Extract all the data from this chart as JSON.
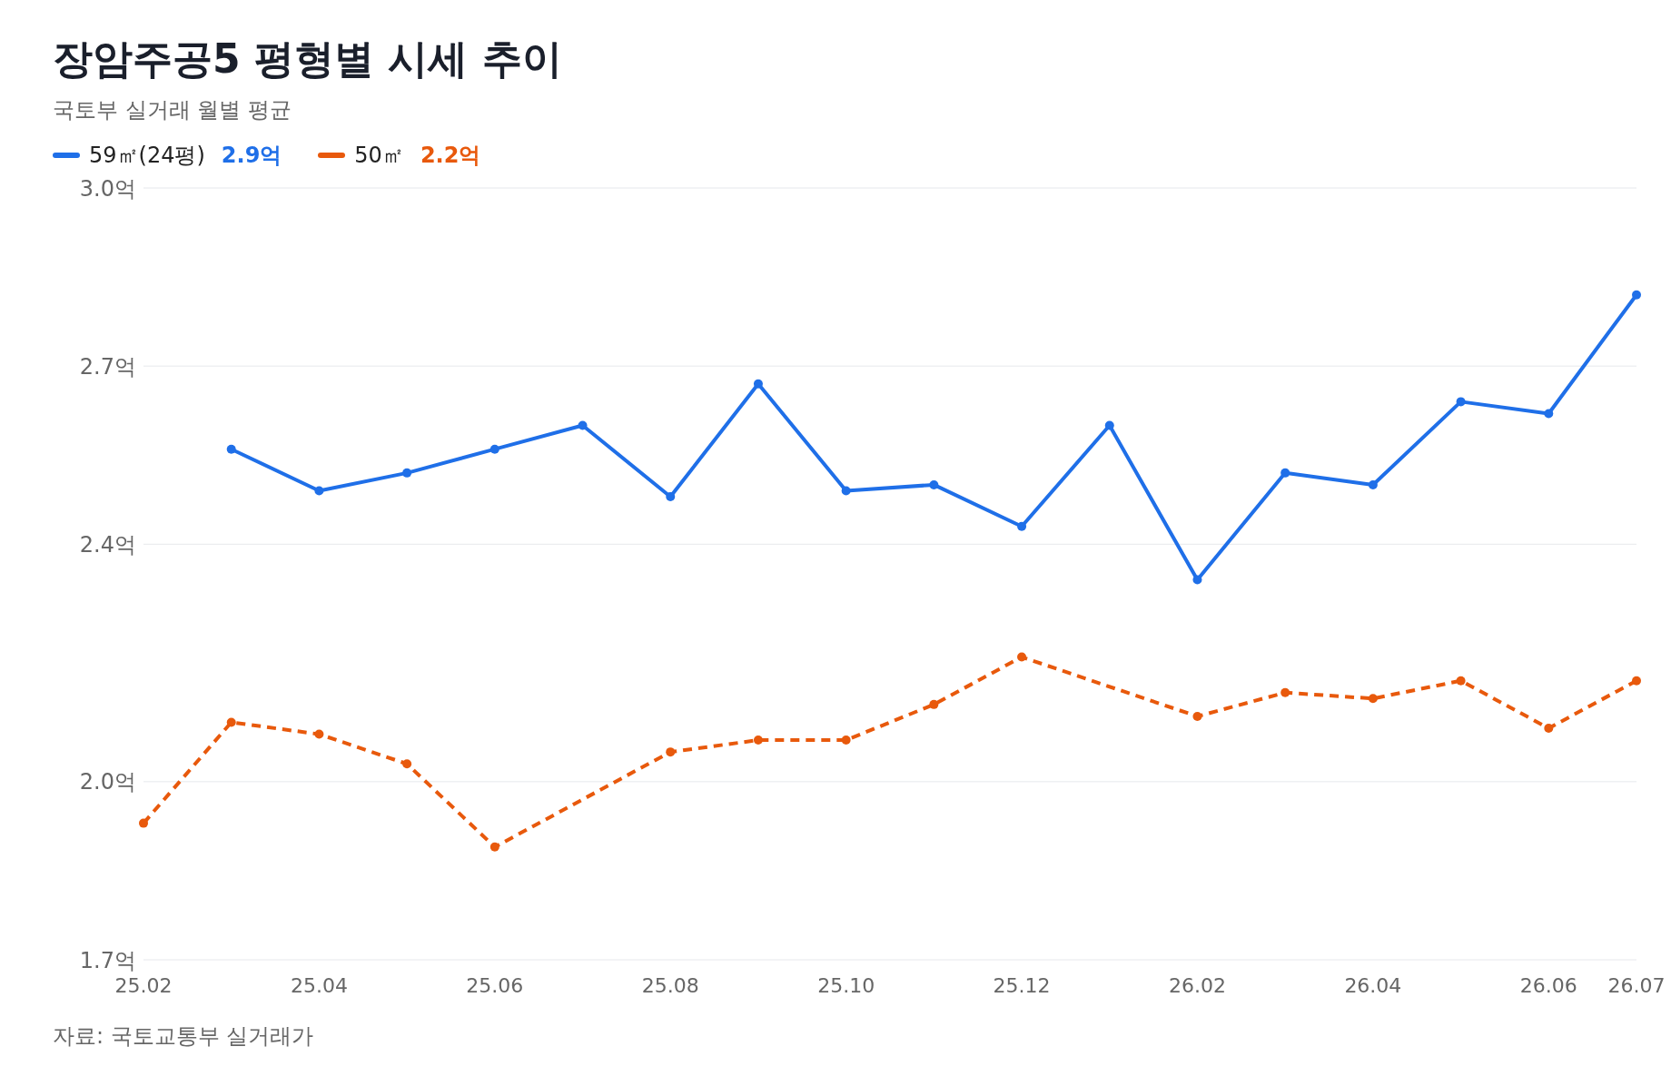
{
  "chart_data": {
    "type": "line",
    "title": "장암주공5 평형별 시세 추이",
    "subtitle": "국토부 실거래 월별 평균",
    "categories": [
      "25.02",
      null,
      "25.04",
      null,
      "25.06",
      null,
      "25.08",
      null,
      "25.10",
      null,
      "25.12",
      null,
      "26.02",
      null,
      "26.04",
      null,
      "26.06",
      "26.07"
    ],
    "series": [
      {
        "name": "59㎡(24평)",
        "color": "#1f6fe8",
        "line_style": "solid",
        "values": [
          null,
          2.56,
          2.49,
          2.52,
          2.56,
          2.6,
          2.48,
          2.67,
          2.49,
          2.5,
          2.43,
          2.6,
          2.34,
          2.52,
          2.5,
          2.64,
          2.62,
          2.82
        ]
      },
      {
        "name": "50㎡",
        "color": "#e8590c",
        "line_style": "dashed",
        "values": [
          1.93,
          2.1,
          2.08,
          2.03,
          1.89,
          null,
          2.05,
          2.07,
          2.07,
          2.13,
          2.21,
          null,
          2.11,
          2.15,
          2.14,
          2.17,
          2.09,
          2.17
        ]
      }
    ],
    "annotations": [
      "2.9억",
      "2.2억",
      "자료: 국토교통부 실거래가"
    ],
    "ylim": [
      1.7,
      3.0
    ],
    "yticks": [
      {
        "value": 1.7,
        "label": "1.7억"
      },
      {
        "value": 2.0,
        "label": "2.0억"
      },
      {
        "value": 2.4,
        "label": "2.4억"
      },
      {
        "value": 2.7,
        "label": "2.7억"
      },
      {
        "value": 3.0,
        "label": "3.0억"
      }
    ],
    "grid": "y",
    "legend": "top left",
    "marker": "circle"
  }
}
